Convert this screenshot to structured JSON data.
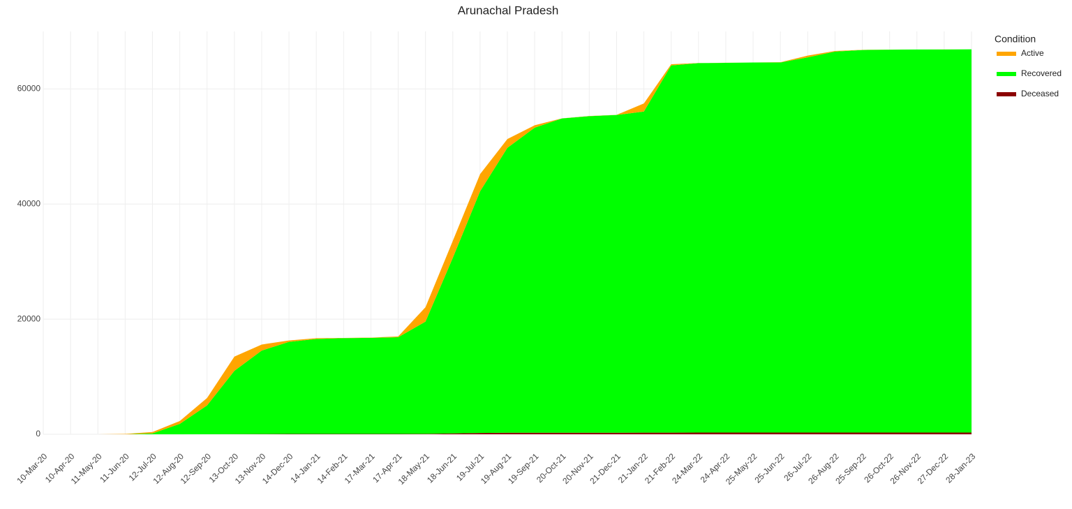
{
  "chart_data": {
    "type": "stacked_area",
    "title": "Arunachal Pradesh",
    "legend_title": "Condition",
    "legend": "top-right",
    "grid": true,
    "categories": [
      "10-Mar-20",
      "10-Apr-20",
      "11-May-20",
      "11-Jun-20",
      "12-Jul-20",
      "12-Aug-20",
      "12-Sep-20",
      "13-Oct-20",
      "13-Nov-20",
      "14-Dec-20",
      "14-Jan-21",
      "14-Feb-21",
      "17-Mar-21",
      "17-Apr-21",
      "18-May-21",
      "18-Jun-21",
      "19-Jul-21",
      "19-Aug-21",
      "19-Sep-21",
      "20-Oct-21",
      "20-Nov-21",
      "21-Dec-21",
      "21-Jan-22",
      "21-Feb-22",
      "24-Mar-22",
      "24-Apr-22",
      "25-May-22",
      "25-Jun-22",
      "26-Jul-22",
      "26-Aug-22",
      "25-Sep-22",
      "26-Oct-22",
      "26-Nov-22",
      "27-Dec-22",
      "28-Jan-23"
    ],
    "series": [
      {
        "name": "Active",
        "color": "#ffa500",
        "values": [
          0,
          1,
          1,
          55,
          250,
          500,
          1290,
          2470,
          1050,
          250,
          140,
          40,
          40,
          140,
          2500,
          2950,
          2980,
          1530,
          420,
          20,
          20,
          20,
          1400,
          200,
          10,
          10,
          10,
          50,
          300,
          100,
          20,
          10,
          10,
          10,
          10
        ]
      },
      {
        "name": "Recovered",
        "color": "#00ff00",
        "values": [
          0,
          0,
          0,
          5,
          150,
          1800,
          5000,
          11000,
          14500,
          16000,
          16500,
          16650,
          16700,
          16800,
          19500,
          30500,
          42000,
          49500,
          53000,
          54600,
          55000,
          55200,
          55800,
          63800,
          64200,
          64250,
          64300,
          64300,
          65200,
          66200,
          66480,
          66540,
          66560,
          66570,
          66590
        ]
      },
      {
        "name": "Deceased",
        "color": "#8b0000",
        "values": [
          0,
          0,
          0,
          0,
          1,
          5,
          12,
          30,
          45,
          55,
          56,
          56,
          56,
          56,
          80,
          150,
          220,
          270,
          278,
          280,
          280,
          280,
          282,
          292,
          296,
          296,
          296,
          296,
          296,
          296,
          296,
          296,
          296,
          296,
          296
        ]
      }
    ],
    "ylim": [
      0,
      70000
    ],
    "yticks": [
      0,
      20000,
      40000,
      60000
    ]
  }
}
